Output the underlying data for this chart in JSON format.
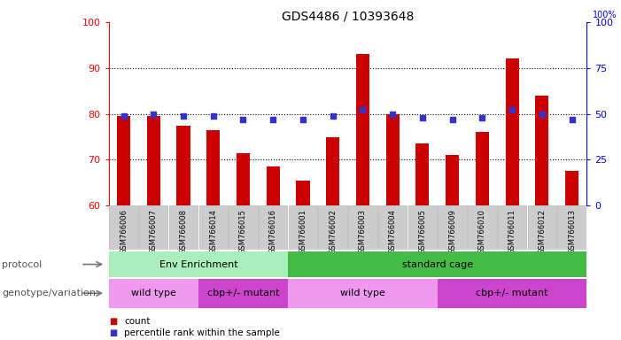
{
  "title": "GDS4486 / 10393648",
  "samples": [
    "GSM766006",
    "GSM766007",
    "GSM766008",
    "GSM766014",
    "GSM766015",
    "GSM766016",
    "GSM766001",
    "GSM766002",
    "GSM766003",
    "GSM766004",
    "GSM766005",
    "GSM766009",
    "GSM766010",
    "GSM766011",
    "GSM766012",
    "GSM766013"
  ],
  "counts": [
    79.5,
    79.5,
    77.5,
    76.5,
    71.5,
    68.5,
    65.5,
    75.0,
    93.0,
    80.0,
    73.5,
    71.0,
    76.0,
    92.0,
    84.0,
    67.5
  ],
  "percentiles": [
    49,
    50,
    49,
    49,
    47,
    47,
    47,
    49,
    52,
    50,
    48,
    47,
    48,
    52,
    50,
    47
  ],
  "ylim_left": [
    60,
    100
  ],
  "ylim_right": [
    0,
    100
  ],
  "yticks_left": [
    60,
    70,
    80,
    90,
    100
  ],
  "yticks_right": [
    0,
    25,
    50,
    75,
    100
  ],
  "bar_color": "#cc0000",
  "dot_color": "#3333cc",
  "proto_light": "#aaeebb",
  "proto_dark": "#44bb44",
  "geno_light": "#ee99ee",
  "geno_dark": "#cc44cc",
  "protocol_groups": [
    {
      "label": "Env Enrichment",
      "start": 0,
      "end": 5
    },
    {
      "label": "standard cage",
      "start": 6,
      "end": 15
    }
  ],
  "genotype_groups": [
    {
      "label": "wild type",
      "start": 0,
      "end": 2,
      "light": true
    },
    {
      "label": "cbp+/- mutant",
      "start": 3,
      "end": 5,
      "light": false
    },
    {
      "label": "wild type",
      "start": 6,
      "end": 10,
      "light": true
    },
    {
      "label": "cbp+/- mutant",
      "start": 11,
      "end": 15,
      "light": false
    }
  ],
  "legend_count_color": "#cc0000",
  "legend_dot_color": "#3333cc",
  "bg_color": "#ffffff"
}
